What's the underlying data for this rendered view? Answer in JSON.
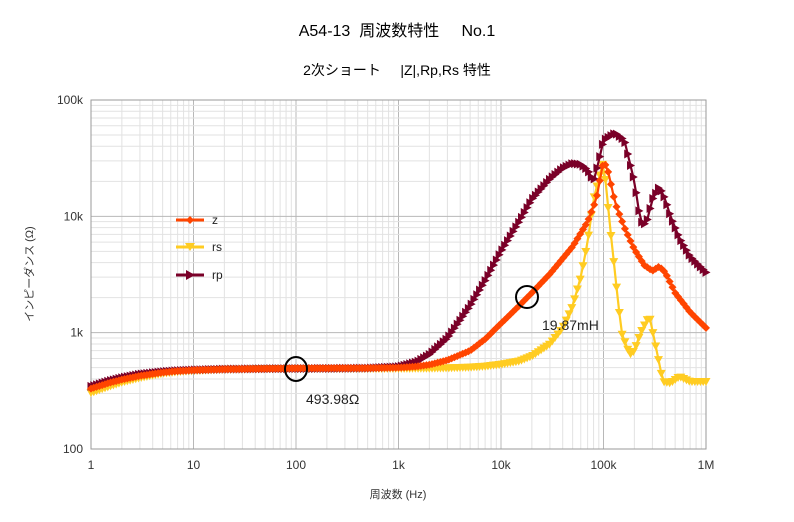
{
  "chart_data": {
    "type": "line",
    "title": "A54-13  周波数特性     No.1",
    "subtitle": "2次ショート     |Z|,Rp,Rs 特性",
    "xlabel": "周波数 (Hz)",
    "ylabel": "インピーダンス (Ω)",
    "x_scale": "log",
    "y_scale": "log",
    "xlim": [
      1,
      1000000
    ],
    "ylim": [
      100,
      100000
    ],
    "x_ticks": [
      "1",
      "10",
      "100",
      "1k",
      "10k",
      "100k",
      "1M"
    ],
    "y_ticks": [
      "100",
      "1k",
      "10k",
      "100k"
    ],
    "grid": true,
    "legend_position": "center-left",
    "series": [
      {
        "name": "z",
        "color": "#ff4500",
        "marker": "diamond",
        "x": [
          1,
          1.5,
          2,
          3,
          5,
          7,
          10,
          20,
          50,
          100,
          200,
          500,
          1000,
          1500,
          2000,
          3000,
          5000,
          7000,
          10000,
          15000,
          20000,
          30000,
          50000,
          70000,
          85000,
          100000,
          110000,
          130000,
          160000,
          200000,
          250000,
          300000,
          350000,
          400000,
          500000,
          700000,
          1000000
        ],
        "y": [
          330,
          370,
          395,
          425,
          455,
          468,
          476,
          485,
          490,
          494,
          495,
          496,
          500,
          512,
          530,
          580,
          700,
          880,
          1200,
          1700,
          2200,
          3200,
          5500,
          9000,
          14000,
          30000,
          25000,
          13000,
          8000,
          5200,
          3800,
          3400,
          3700,
          3300,
          2200,
          1500,
          1100
        ]
      },
      {
        "name": "rs",
        "color": "#ffcc22",
        "marker": "triangle-down",
        "x": [
          1,
          1.5,
          2,
          3,
          5,
          7,
          10,
          20,
          50,
          100,
          200,
          500,
          1000,
          2000,
          3000,
          5000,
          7000,
          10000,
          15000,
          20000,
          30000,
          40000,
          50000,
          60000,
          70000,
          80000,
          90000,
          100000,
          120000,
          150000,
          180000,
          200000,
          230000,
          280000,
          330000,
          380000,
          450000,
          550000,
          700000,
          1000000
        ],
        "y": [
          305,
          345,
          375,
          410,
          448,
          462,
          472,
          484,
          490,
          492,
          492,
          492,
          493,
          495,
          498,
          505,
          515,
          535,
          570,
          630,
          800,
          1100,
          1700,
          3000,
          6000,
          14000,
          21000,
          30000,
          6000,
          1000,
          650,
          700,
          1000,
          1400,
          700,
          380,
          370,
          420,
          380,
          380
        ]
      },
      {
        "name": "rp",
        "color": "#7a0028",
        "marker": "triangle-right",
        "x": [
          1,
          1.5,
          2,
          3,
          5,
          7,
          10,
          20,
          50,
          100,
          200,
          500,
          1000,
          1500,
          2000,
          3000,
          5000,
          7000,
          10000,
          15000,
          20000,
          30000,
          40000,
          50000,
          60000,
          70000,
          80000,
          90000,
          100000,
          130000,
          160000,
          200000,
          230000,
          260000,
          300000,
          350000,
          400000,
          450000,
          550000,
          700000,
          1000000
        ],
        "y": [
          345,
          385,
          410,
          440,
          462,
          472,
          478,
          486,
          490,
          492,
          493,
          496,
          510,
          560,
          650,
          900,
          1700,
          2800,
          5000,
          9000,
          14000,
          21000,
          26000,
          28500,
          28000,
          25000,
          20000,
          30000,
          45000,
          52000,
          45000,
          20000,
          9000,
          8500,
          14000,
          18000,
          14000,
          10000,
          6500,
          4500,
          3300
        ]
      }
    ],
    "annotations": [
      {
        "text": "493.98Ω",
        "x": 100,
        "y": 494
      },
      {
        "text": "19.87mH",
        "x": 20000,
        "y": 2100
      }
    ]
  }
}
